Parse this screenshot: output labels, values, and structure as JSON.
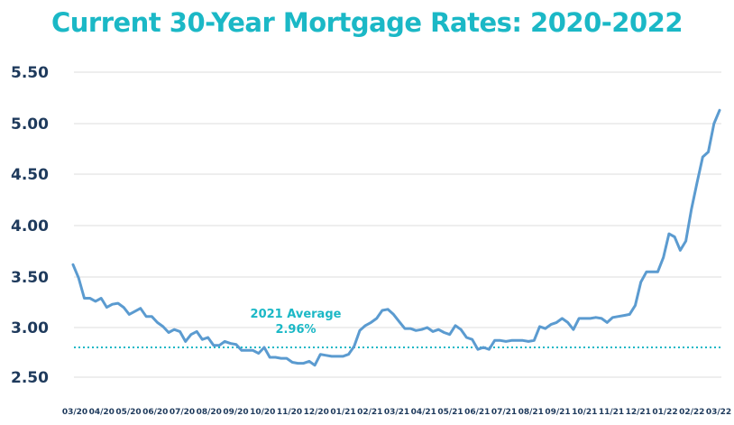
{
  "chart_data": {
    "type": "line",
    "title": "Current 30-Year Mortgage Rates: 2020-2022",
    "xlabel": "",
    "ylabel": "",
    "ylim": [
      2.5,
      5.5
    ],
    "yticks": [
      "5.50",
      "5.00",
      "4.50",
      "4.00",
      "3.50",
      "3.00",
      "2.50"
    ],
    "xticks": [
      "03/20",
      "04/20",
      "05/20",
      "06/20",
      "07/20",
      "08/20",
      "09/20",
      "10/20",
      "11/20",
      "12/20",
      "01/21",
      "02/21",
      "03/21",
      "04/21",
      "05/21",
      "06/21",
      "07/21",
      "08/21",
      "09/21",
      "10/21",
      "11/21",
      "12/21",
      "01/22",
      "02/22",
      "03/22"
    ],
    "grid": true,
    "series": [
      {
        "values": [
          3.62,
          3.49,
          3.29,
          3.29,
          3.26,
          3.29,
          3.2,
          3.23,
          3.24,
          3.2,
          3.13,
          3.16,
          3.19,
          3.11,
          3.11,
          3.05,
          3.01,
          2.95,
          2.98,
          2.96,
          2.86,
          2.93,
          2.96,
          2.88,
          2.9,
          2.82,
          2.82,
          2.86,
          2.84,
          2.83,
          2.77,
          2.77,
          2.77,
          2.74,
          2.8,
          2.7,
          2.7,
          2.69,
          2.69,
          2.65,
          2.64,
          2.64,
          2.66,
          2.62,
          2.73,
          2.72,
          2.71,
          2.71,
          2.71,
          2.73,
          2.81,
          2.97,
          3.02,
          3.05,
          3.09,
          3.17,
          3.18,
          3.13,
          3.06,
          2.99,
          2.99,
          2.97,
          2.98,
          3.0,
          2.96,
          2.98,
          2.95,
          2.93,
          3.02,
          2.98,
          2.9,
          2.88,
          2.78,
          2.8,
          2.78,
          2.87,
          2.87,
          2.86,
          2.87,
          2.87,
          2.87,
          2.86,
          2.87,
          3.01,
          2.99,
          3.03,
          3.05,
          3.09,
          3.05,
          2.98,
          3.09,
          3.09,
          3.09,
          3.1,
          3.09,
          3.05,
          3.1,
          3.11,
          3.12,
          3.13,
          3.22,
          3.45,
          3.55,
          3.55,
          3.55,
          3.69,
          3.92,
          3.89,
          3.76,
          3.85,
          4.16,
          4.42,
          4.67,
          4.72,
          5.0,
          5.13
        ]
      }
    ],
    "reference_line": {
      "value": 2.96,
      "style": "dotted"
    },
    "annotation": {
      "line1": "2021 Average",
      "line2": "2.96%"
    },
    "colors": {
      "line": "#5b9bd0",
      "accent": "#1bb8c6",
      "text": "#1e3a5c",
      "grid": "#dedede"
    }
  }
}
